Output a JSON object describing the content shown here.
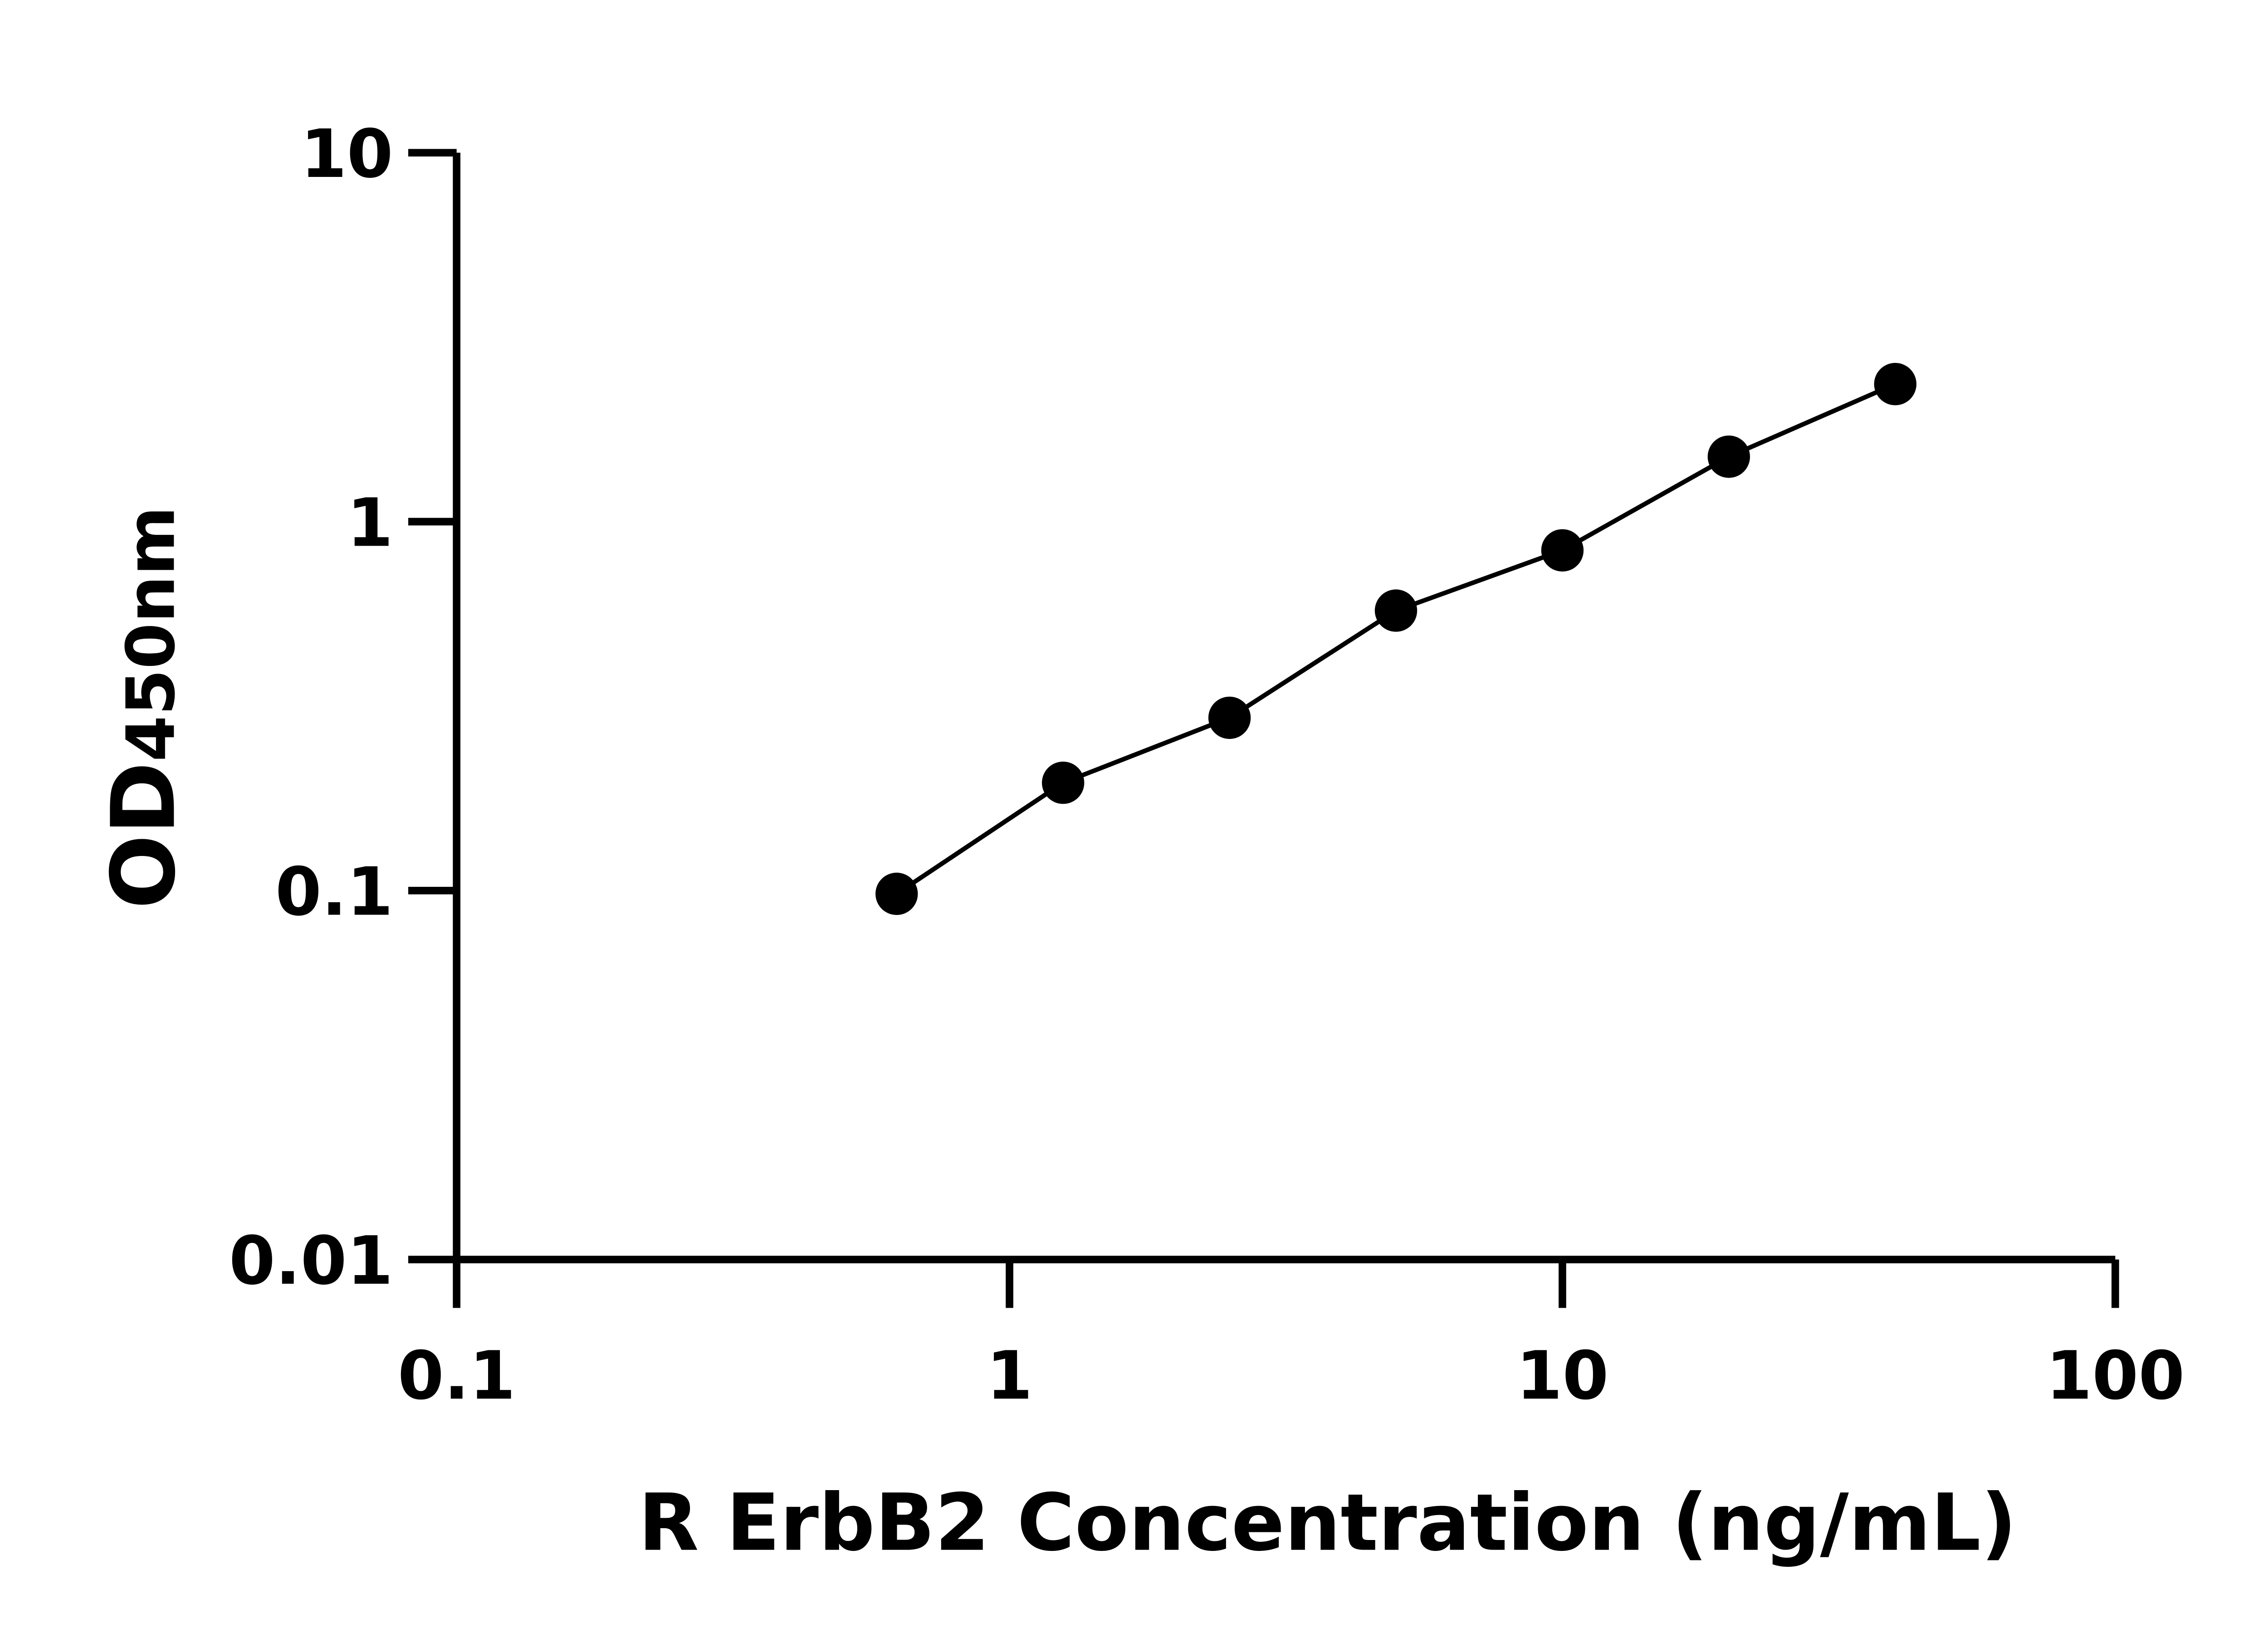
{
  "chart_data": {
    "type": "line",
    "title": "",
    "xlabel": "R ErbB2 Concentration (ng/mL)",
    "ylabel_main": "OD",
    "ylabel_sub": "450nm",
    "xscale": "log",
    "yscale": "log",
    "xlim": [
      0.1,
      100
    ],
    "ylim": [
      0.01,
      10
    ],
    "xticks": [
      "0.1",
      "1",
      "10",
      "100"
    ],
    "yticks": [
      "0.01",
      "0.1",
      "1",
      "10"
    ],
    "grid": false,
    "legend": "none",
    "series": [
      {
        "x": [
          0.625,
          1.25,
          2.5,
          5,
          10,
          20,
          40
        ],
        "y": [
          0.098,
          0.196,
          0.294,
          0.574,
          0.836,
          1.5,
          2.36
        ],
        "marker": "circle",
        "color": "#000000"
      }
    ]
  }
}
